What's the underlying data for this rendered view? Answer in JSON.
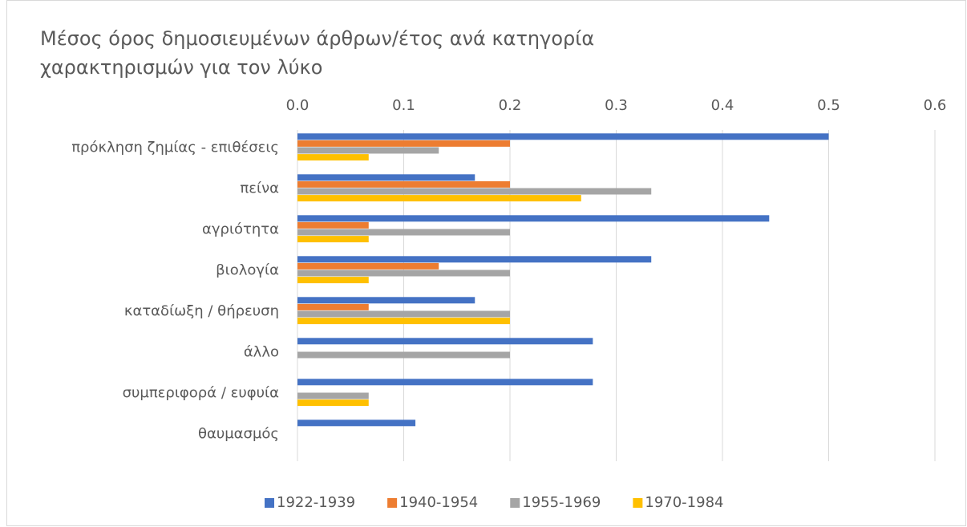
{
  "chart_data": {
    "type": "hbar",
    "title": "Μέσος όρος δημοσιευμένων άρθρων/έτος ανά κατηγορία χαρακτηρισμών για τον λύκο",
    "categories": [
      "πρόκληση ζημίας - επιθέσεις",
      "πείνα",
      "αγριότητα",
      "βιολογία",
      "καταδίωξη / θήρευση",
      "άλλο",
      "συμπεριφορά / ευφυία",
      "θαυμασμός"
    ],
    "series": [
      {
        "name": "1922-1939",
        "color": "#4472c4",
        "values": [
          0.5,
          0.167,
          0.444,
          0.333,
          0.167,
          0.278,
          0.278,
          0.111
        ]
      },
      {
        "name": "1940-1954",
        "color": "#ed7d31",
        "values": [
          0.2,
          0.2,
          0.067,
          0.133,
          0.067,
          0,
          0,
          0
        ]
      },
      {
        "name": "1955-1969",
        "color": "#a5a5a5",
        "values": [
          0.133,
          0.333,
          0.2,
          0.2,
          0.2,
          0.2,
          0.067,
          0
        ]
      },
      {
        "name": "1970-1984",
        "color": "#ffc000",
        "values": [
          0.067,
          0.267,
          0.067,
          0.067,
          0.2,
          0,
          0.067,
          0
        ]
      }
    ],
    "xlim": [
      0,
      0.6
    ],
    "xticks": [
      {
        "value": 0,
        "label": "0.0"
      },
      0.1,
      0.2,
      0.3,
      0.4,
      0.5,
      0.6
    ],
    "grid": true,
    "legend": "bottom"
  }
}
